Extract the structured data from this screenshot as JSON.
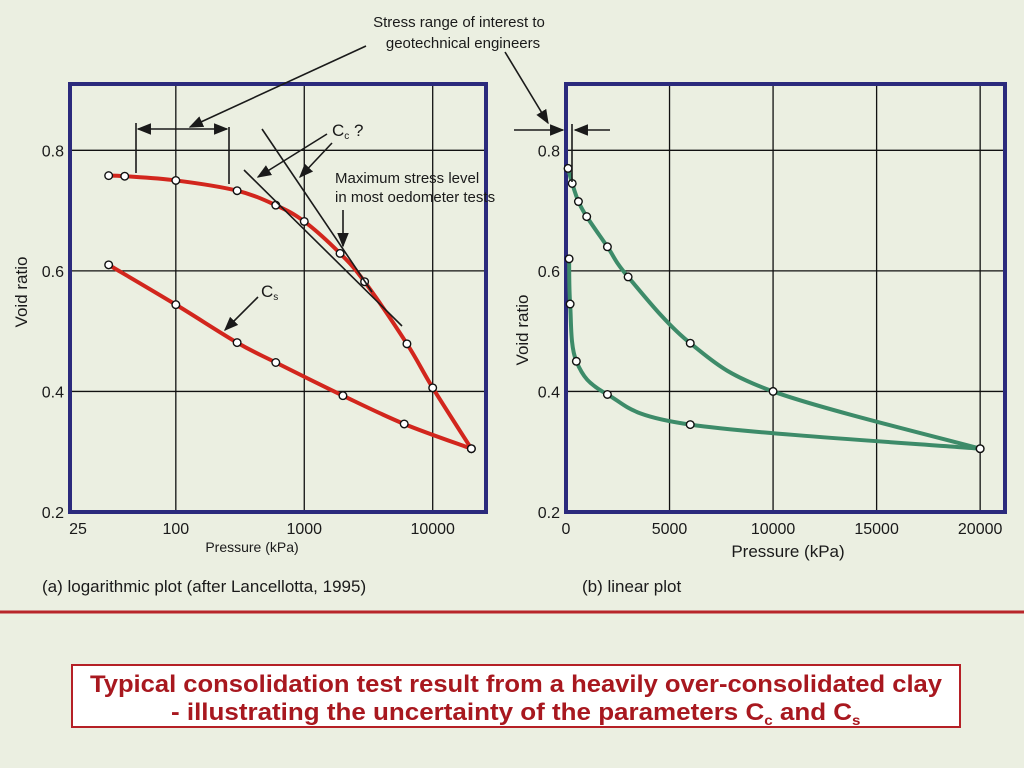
{
  "annotations": {
    "stress_range_line1": "Stress range of interest to",
    "stress_range_line2": "geotechnical engineers",
    "cc_label": "C",
    "cc_sub": "c",
    "cc_suffix": " ?",
    "cs_label": "C",
    "cs_sub": "s",
    "max_stress_line1": "Maximum stress level",
    "max_stress_line2": "in most oedometer tests"
  },
  "captions": {
    "left": "(a) logarithmic plot (after Lancellotta, 1995)",
    "right": "(b) linear plot"
  },
  "slide_title": {
    "line1": "Typical consolidation test result from a heavily over-consolidated clay",
    "line2_prefix": "- illustrating the uncertainty of the parameters C",
    "line2_sub1": "c",
    "line2_mid": " and C",
    "line2_sub2": "s"
  },
  "colors": {
    "background": "#ebefe1",
    "frame": "#2b2a7c",
    "log_curve": "#d2261d",
    "linear_curve": "#3d8b69",
    "title": "#a8181f",
    "divider": "#b8262a"
  },
  "chart_data": [
    {
      "type": "line",
      "name": "log",
      "xscale": "log",
      "xlabel": "Pressure (kPa)",
      "ylabel": "Void ratio",
      "xlim": [
        15,
        26000
      ],
      "ylim": [
        0.2,
        0.91
      ],
      "x_ticks": [
        25,
        100,
        1000,
        10000
      ],
      "x_tick_labels": [
        "25",
        "100",
        "1000",
        "10000"
      ],
      "y_ticks": [
        0.2,
        0.4,
        0.6,
        0.8
      ],
      "y_tick_labels": [
        "0.2",
        "0.4",
        "0.6",
        "0.8"
      ],
      "grid": true,
      "series": [
        {
          "x": [
            30,
            40,
            100,
            300,
            600,
            1000,
            1900,
            2950,
            6300,
            10000,
            20000
          ],
          "y": [
            0.758,
            0.757,
            0.75,
            0.733,
            0.709,
            0.682,
            0.629,
            0.582,
            0.479,
            0.406,
            0.305
          ]
        },
        {
          "x": [
            20000,
            6000,
            2000,
            600,
            300,
            100,
            30
          ],
          "y": [
            0.305,
            0.346,
            0.393,
            0.448,
            0.481,
            0.544,
            0.61
          ]
        }
      ]
    },
    {
      "type": "line",
      "name": "linear",
      "xscale": "linear",
      "xlabel": "Pressure (kPa)",
      "ylabel": "Void ratio",
      "xlim": [
        0,
        21200
      ],
      "ylim": [
        0.2,
        0.91
      ],
      "x_ticks": [
        0,
        5000,
        10000,
        15000,
        20000
      ],
      "x_tick_labels": [
        "0",
        "5000",
        "10000",
        "15000",
        "20000"
      ],
      "y_ticks": [
        0.2,
        0.4,
        0.6,
        0.8
      ],
      "y_tick_labels": [
        "0.2",
        "0.4",
        "0.6",
        "0.8"
      ],
      "grid": true,
      "series": [
        {
          "x": [
            100,
            300,
            600,
            1000,
            2000,
            3000,
            6000,
            10000,
            20000
          ],
          "y": [
            0.77,
            0.745,
            0.715,
            0.69,
            0.64,
            0.59,
            0.48,
            0.4,
            0.305
          ]
        },
        {
          "x": [
            20000,
            6000,
            2000,
            500,
            200,
            150
          ],
          "y": [
            0.305,
            0.345,
            0.395,
            0.45,
            0.545,
            0.62
          ]
        }
      ]
    }
  ]
}
